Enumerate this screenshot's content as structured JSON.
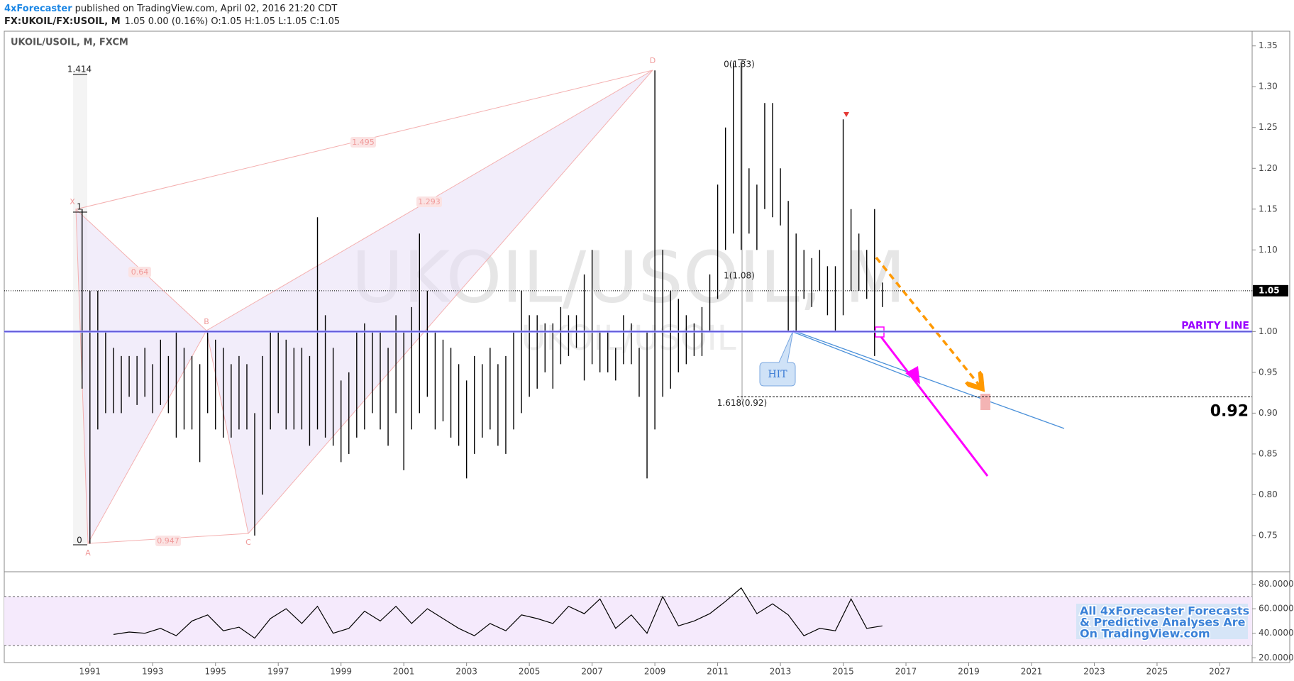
{
  "header": {
    "author": "4xForecaster",
    "published": "published on TradingView.com, April 02, 2016 21:20 CDT",
    "symbol": "FX:UKOIL/FX:USOIL, M",
    "quote": "1.05 0.00 (0.16%) O:1.05 H:1.05 L:1.05 C:1.05"
  },
  "chart_data": [
    {
      "type": "range_bar",
      "title": "UKOIL/USOIL, M, FXCM",
      "watermark": "UKOIL/USOIL, M",
      "watermark_sub": "UKOIL/USOIL",
      "color": "#000000",
      "x": [
        1990.75,
        1991,
        1991.25,
        1991.5,
        1991.75,
        1992,
        1992.25,
        1992.5,
        1992.75,
        1993,
        1993.25,
        1993.5,
        1993.75,
        1994,
        1994.25,
        1994.5,
        1994.75,
        1995,
        1995.25,
        1995.5,
        1995.75,
        1996,
        1996.25,
        1996.5,
        1996.75,
        1997,
        1997.25,
        1997.5,
        1997.75,
        1998,
        1998.25,
        1998.5,
        1998.75,
        1999,
        1999.25,
        1999.5,
        1999.75,
        2000,
        2000.25,
        2000.5,
        2000.75,
        2001,
        2001.25,
        2001.5,
        2001.75,
        2002,
        2002.25,
        2002.5,
        2002.75,
        2003,
        2003.25,
        2003.5,
        2003.75,
        2004,
        2004.25,
        2004.5,
        2004.75,
        2005,
        2005.25,
        2005.5,
        2005.75,
        2006,
        2006.25,
        2006.5,
        2006.75,
        2007,
        2007.25,
        2007.5,
        2007.75,
        2008,
        2008.25,
        2008.5,
        2008.75,
        2009,
        2009.25,
        2009.5,
        2009.75,
        2010,
        2010.25,
        2010.5,
        2010.75,
        2011,
        2011.25,
        2011.5,
        2011.75,
        2012,
        2012.25,
        2012.5,
        2012.75,
        2013,
        2013.25,
        2013.5,
        2013.75,
        2014,
        2014.25,
        2014.5,
        2014.75,
        2015,
        2015.25,
        2015.5,
        2015.75,
        2016,
        2016.25
      ],
      "high": [
        1.15,
        1.05,
        1.05,
        1.0,
        0.98,
        0.97,
        0.97,
        0.97,
        0.98,
        0.96,
        0.99,
        0.97,
        1.0,
        0.98,
        0.97,
        0.96,
        1.0,
        0.99,
        0.98,
        0.96,
        0.97,
        0.96,
        0.9,
        0.97,
        1.0,
        1.0,
        0.99,
        0.98,
        0.98,
        0.97,
        1.14,
        1.02,
        0.98,
        0.94,
        0.95,
        1.0,
        1.01,
        1.0,
        1.0,
        0.98,
        1.02,
        1.0,
        1.03,
        1.12,
        1.05,
        1.0,
        0.99,
        0.98,
        0.96,
        0.94,
        0.97,
        0.96,
        0.98,
        0.96,
        0.97,
        1.0,
        1.05,
        1.02,
        1.02,
        1.01,
        1.01,
        1.03,
        1.02,
        1.02,
        1.07,
        1.1,
        1.0,
        1.0,
        0.98,
        1.02,
        1.01,
        0.98,
        1.0,
        1.32,
        1.1,
        1.05,
        1.04,
        1.02,
        1.01,
        1.03,
        1.07,
        1.18,
        1.25,
        1.33,
        1.33,
        1.2,
        1.18,
        1.28,
        1.28,
        1.2,
        1.16,
        1.12,
        1.1,
        1.09,
        1.1,
        1.08,
        1.08,
        1.26,
        1.15,
        1.12,
        1.1,
        1.15,
        1.06
      ],
      "low": [
        0.93,
        0.74,
        0.88,
        0.9,
        0.9,
        0.9,
        0.92,
        0.91,
        0.92,
        0.9,
        0.91,
        0.9,
        0.87,
        0.88,
        0.88,
        0.84,
        0.9,
        0.88,
        0.87,
        0.87,
        0.88,
        0.88,
        0.75,
        0.8,
        0.88,
        0.9,
        0.88,
        0.88,
        0.88,
        0.86,
        0.88,
        0.87,
        0.86,
        0.84,
        0.85,
        0.87,
        0.88,
        0.9,
        0.88,
        0.86,
        0.9,
        0.83,
        0.88,
        0.9,
        0.92,
        0.88,
        0.89,
        0.87,
        0.86,
        0.82,
        0.85,
        0.87,
        0.88,
        0.86,
        0.85,
        0.88,
        0.9,
        0.92,
        0.93,
        0.95,
        0.93,
        0.96,
        0.97,
        0.98,
        0.94,
        0.96,
        0.95,
        0.95,
        0.94,
        0.96,
        0.96,
        0.92,
        0.82,
        0.88,
        0.92,
        0.93,
        0.95,
        0.96,
        0.97,
        0.97,
        1.0,
        1.04,
        1.1,
        1.12,
        1.1,
        1.12,
        1.1,
        1.15,
        1.14,
        1.13,
        1.0,
        1.0,
        1.04,
        1.03,
        1.05,
        1.02,
        1.0,
        1.02,
        1.05,
        1.05,
        1.04,
        0.97,
        1.03
      ],
      "xlim": [
        1988.27,
        2028.03
      ],
      "ylim": [
        0.7065,
        1.368
      ],
      "yticks": [
        0.75,
        {
          "value": 0.8,
          "label": "0.80"
        },
        0.85,
        {
          "value": 0.9,
          "label": "0.90"
        },
        0.95,
        {
          "value": 1.0,
          "label": "1.00"
        },
        1.05,
        {
          "value": 1.1,
          "label": "1.10"
        },
        1.15,
        {
          "value": 1.2,
          "label": "1.20"
        },
        1.25,
        {
          "value": 1.3,
          "label": "1.30"
        },
        1.35
      ],
      "last_price": 1.05,
      "target_price": 0.92,
      "parity_line": {
        "label": "PARITY LINE",
        "value": 1
      },
      "annotations": {
        "fib_left": [
          "1.414",
          "1",
          "0"
        ],
        "fib_right": [
          "0(1.33)",
          "1(1.08)",
          "1.618(0.92)"
        ],
        "pattern_points": [
          "X",
          "A",
          "B",
          "C",
          "D"
        ],
        "pattern_ratios": [
          "0.64",
          "0.947",
          "1.293",
          "1.495"
        ],
        "callout": "HIT",
        "note": [
          "All 4xForecaster Forecasts",
          "& Predictive Analyses Are",
          "On TradingView.com"
        ]
      }
    },
    {
      "type": "line",
      "color": "#000000",
      "x": [
        1991.75,
        1992.25,
        1992.75,
        1993.25,
        1993.75,
        1994.25,
        1994.75,
        1995.25,
        1995.75,
        1996.25,
        1996.75,
        1997.25,
        1997.75,
        1998.25,
        1998.75,
        1999.25,
        1999.75,
        2000.25,
        2000.75,
        2001.25,
        2001.75,
        2002.25,
        2002.75,
        2003.25,
        2003.75,
        2004.25,
        2004.75,
        2005.25,
        2005.75,
        2006.25,
        2006.75,
        2007.25,
        2007.75,
        2008.25,
        2008.75,
        2009.25,
        2009.75,
        2010.25,
        2010.75,
        2011.25,
        2011.75,
        2012.25,
        2012.75,
        2013.25,
        2013.75,
        2014.25,
        2014.75,
        2015.25,
        2015.75,
        2016.25
      ],
      "values": [
        39,
        41,
        40,
        44,
        38,
        50,
        55,
        42,
        45,
        36,
        52,
        60,
        48,
        62,
        40,
        44,
        58,
        50,
        62,
        48,
        60,
        52,
        44,
        38,
        48,
        42,
        55,
        52,
        48,
        62,
        56,
        68,
        44,
        55,
        40,
        70,
        46,
        50,
        56,
        66,
        77,
        56,
        64,
        55,
        38,
        44,
        42,
        68,
        44,
        46
      ],
      "bands": [
        30,
        70
      ],
      "xlim": [
        1988.27,
        2028.03
      ],
      "xticks": [
        1991,
        1993,
        1995,
        1997,
        1999,
        2001,
        2003,
        2005,
        2007,
        2009,
        2011,
        2013,
        2015,
        2017,
        2019,
        2021,
        2023,
        2025,
        2027
      ],
      "ylim": [
        16.1,
        89.6
      ],
      "yticks": [
        {
          "value": 20,
          "label": "20.0000"
        },
        {
          "value": 40,
          "label": "40.0000"
        },
        {
          "value": 60,
          "label": "60.0000"
        },
        {
          "value": 80,
          "label": "80.0000"
        }
      ]
    }
  ]
}
